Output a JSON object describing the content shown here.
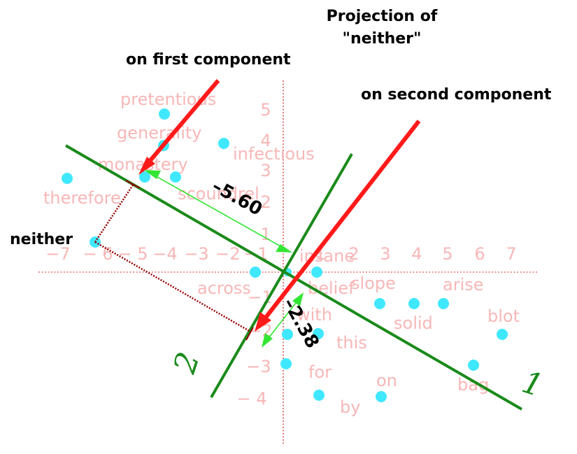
{
  "headings": {
    "title_line1": "Projection of",
    "title_line2": "\"neither\"",
    "first": "on first component",
    "second": "on second component",
    "word": "neither"
  },
  "measurements": {
    "first": "–5.60",
    "second": "–2.38"
  },
  "components": {
    "one": "1",
    "two": "2"
  },
  "x_ticks": [
    "−7",
    "− 6",
    "− 5",
    "−4",
    "−3",
    "−2",
    "−1",
    "1",
    "2",
    "3",
    "4",
    "5",
    "6",
    "7"
  ],
  "y_ticks": [
    "5",
    "4",
    "3",
    "2",
    "1",
    "−1",
    "−2",
    "−3",
    "− 4"
  ],
  "words": [
    "pretentious",
    "generality",
    "monastery",
    "infectious",
    "therefore",
    "scoundrel",
    "insane",
    "across",
    "belief",
    "slope",
    "arise",
    "solid",
    "blot",
    "with",
    "this",
    "for",
    "on",
    "bag",
    "by"
  ],
  "colors": {
    "point": "#40e8ff",
    "word": "#f7b7b7",
    "axis": "#cc2222",
    "component_line": "#1a8a1a",
    "arrow": "#ff1a1a",
    "measure_arrow": "#33e633",
    "projection": "#990000"
  }
}
